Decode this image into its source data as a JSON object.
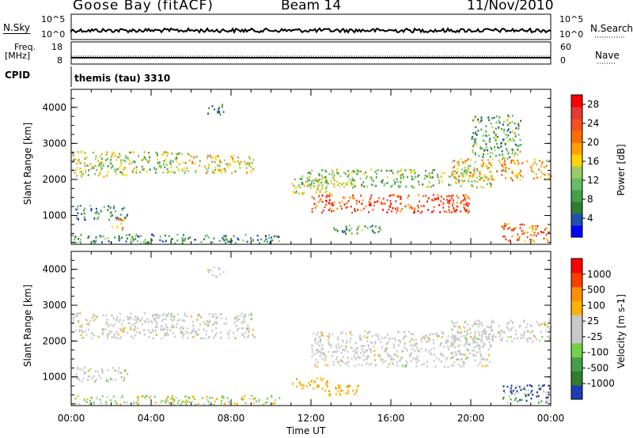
{
  "header": {
    "station": "Goose Bay (fitACF)",
    "beam": "Beam 14",
    "date": "11/Nov/2010"
  },
  "strips": {
    "nsky_label": "N.Sky",
    "nsky_ticks": [
      "10^5",
      "10^0"
    ],
    "nsearch_label": "N.Search",
    "nsearch_ticks": [
      "10^5",
      "10^0"
    ],
    "freq_label": "Freq.",
    "freq_unit": "[MHz]",
    "freq_ticks": [
      "18",
      "8"
    ],
    "nave_label": "Nave",
    "nave_ticks": [
      "60",
      "0"
    ],
    "cpid_label": "CPID",
    "cpid_value": "themis (tau) 3310"
  },
  "chart_data": [
    {
      "type": "heatmap",
      "title": "",
      "xlabel": "Time UT",
      "ylabel": "Slant Range [km]",
      "xlim_hours": [
        0,
        24
      ],
      "ylim_km": [
        200,
        4500
      ],
      "x_ticks": [
        "00:00",
        "04:00",
        "08:00",
        "12:00",
        "16:00",
        "20:00",
        "00:00"
      ],
      "y_ticks": [
        1000,
        2000,
        3000,
        4000
      ],
      "colorbar": {
        "label": "Power [dB]",
        "ticks": [
          "28",
          "24",
          "20",
          "16",
          "12",
          "8",
          "4"
        ],
        "range": [
          0,
          30
        ],
        "colors": [
          "#0000ff",
          "#1e50b4",
          "#2e7d32",
          "#43a047",
          "#66bb6a",
          "#9ccc65",
          "#ffd600",
          "#ffa000",
          "#ff6d00",
          "#f4511e",
          "#e53935",
          "#ff0000"
        ]
      },
      "scatter_regions": [
        {
          "t0": 0.0,
          "t1": 3.0,
          "r0": 2100,
          "r1": 2800,
          "level": 14
        },
        {
          "t0": 3.0,
          "t1": 6.0,
          "r0": 2200,
          "r1": 2800,
          "level": 13
        },
        {
          "t0": 6.0,
          "t1": 9.2,
          "r0": 2200,
          "r1": 2700,
          "level": 16
        },
        {
          "t0": 0.2,
          "t1": 2.8,
          "r0": 900,
          "r1": 1300,
          "level": 8
        },
        {
          "t0": 2.0,
          "t1": 2.6,
          "r0": 600,
          "r1": 1000,
          "level": 20
        },
        {
          "t0": 6.8,
          "t1": 7.6,
          "r0": 3800,
          "r1": 4100,
          "level": 6
        },
        {
          "t0": 0.0,
          "t1": 10.5,
          "r0": 250,
          "r1": 500,
          "level": 8
        },
        {
          "t0": 11.0,
          "t1": 13.0,
          "r0": 1600,
          "r1": 2100,
          "level": 14
        },
        {
          "t0": 12.0,
          "t1": 20.0,
          "r0": 1100,
          "r1": 1600,
          "level": 24
        },
        {
          "t0": 11.5,
          "t1": 21.0,
          "r0": 1800,
          "r1": 2300,
          "level": 12
        },
        {
          "t0": 19.0,
          "t1": 24.0,
          "r0": 2000,
          "r1": 2600,
          "level": 18
        },
        {
          "t0": 20.0,
          "t1": 22.5,
          "r0": 2600,
          "r1": 3800,
          "level": 10
        },
        {
          "t0": 21.5,
          "t1": 24.0,
          "r0": 300,
          "r1": 800,
          "level": 22
        },
        {
          "t0": 13.0,
          "t1": 15.5,
          "r0": 500,
          "r1": 750,
          "level": 10
        }
      ]
    },
    {
      "type": "heatmap",
      "title": "",
      "xlabel": "Time UT",
      "ylabel": "Slant Range [km]",
      "xlim_hours": [
        0,
        24
      ],
      "ylim_km": [
        200,
        4500
      ],
      "x_ticks": [
        "00:00",
        "04:00",
        "08:00",
        "12:00",
        "16:00",
        "20:00",
        "00:00"
      ],
      "y_ticks": [
        1000,
        2000,
        3000,
        4000
      ],
      "colorbar": {
        "label": "Velocity [m s-1]",
        "ticks": [
          "1000",
          "500",
          "100",
          "25",
          "-25",
          "-100",
          "-500",
          "-1000"
        ],
        "colors": [
          "#1e3cb4",
          "#2e7d32",
          "#43a047",
          "#76d04b",
          "#c8c8c8",
          "#c8c8c8",
          "#ffb300",
          "#ff8f00",
          "#ff3d00",
          "#ff0000"
        ]
      },
      "scatter_regions": [
        {
          "t0": 0.0,
          "t1": 9.2,
          "r0": 2100,
          "r1": 2800,
          "class": "ground"
        },
        {
          "t0": 0.2,
          "t1": 2.8,
          "r0": 900,
          "r1": 1300,
          "class": "ground"
        },
        {
          "t0": 0.0,
          "t1": 10.5,
          "r0": 250,
          "r1": 500,
          "class": "mixed"
        },
        {
          "t0": 12.0,
          "t1": 21.0,
          "r0": 1300,
          "r1": 2300,
          "class": "ground"
        },
        {
          "t0": 19.0,
          "t1": 24.0,
          "r0": 2000,
          "r1": 2600,
          "class": "ground"
        },
        {
          "t0": 11.0,
          "t1": 12.8,
          "r0": 700,
          "r1": 1000,
          "class": "away"
        },
        {
          "t0": 12.5,
          "t1": 14.5,
          "r0": 500,
          "r1": 800,
          "class": "away"
        },
        {
          "t0": 21.5,
          "t1": 24.0,
          "r0": 300,
          "r1": 800,
          "class": "toward"
        },
        {
          "t0": 6.8,
          "t1": 7.6,
          "r0": 3800,
          "r1": 4100,
          "class": "ground"
        }
      ]
    }
  ]
}
